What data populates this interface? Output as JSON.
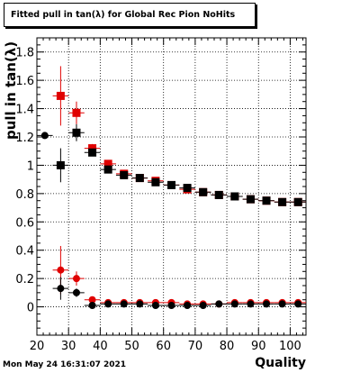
{
  "title": "Fitted pull in tan(λ) for Global Rec Pion NoHits",
  "datestamp": "Mon May 24 16:31:07 2021",
  "chart_data": {
    "type": "scatter",
    "xlabel": "Quality",
    "ylabel": "pull in tan(λ)",
    "xlim": [
      20,
      105
    ],
    "ylim": [
      -0.2,
      1.9
    ],
    "xticks": [
      20,
      30,
      40,
      50,
      60,
      70,
      80,
      90,
      100
    ],
    "yticks": [
      0,
      0.2,
      0.4,
      0.6,
      0.8,
      1,
      1.2,
      1.4,
      1.6,
      1.8
    ],
    "grid": true,
    "series": [
      {
        "marker": "square",
        "color": "#e00000",
        "points": [
          {
            "x": 27.5,
            "y": 1.49,
            "err": 0.21
          },
          {
            "x": 32.5,
            "y": 1.37,
            "err": 0.08
          },
          {
            "x": 37.5,
            "y": 1.12,
            "err": 0.03
          },
          {
            "x": 42.5,
            "y": 1.01,
            "err": 0.02
          },
          {
            "x": 47.5,
            "y": 0.94,
            "err": 0.01
          },
          {
            "x": 52.5,
            "y": 0.91,
            "err": 0.01
          },
          {
            "x": 57.5,
            "y": 0.89,
            "err": 0.01
          },
          {
            "x": 62.5,
            "y": 0.86,
            "err": 0.01
          },
          {
            "x": 67.5,
            "y": 0.83,
            "err": 0.01
          },
          {
            "x": 72.5,
            "y": 0.81,
            "err": 0.01
          },
          {
            "x": 77.5,
            "y": 0.79,
            "err": 0.01
          },
          {
            "x": 82.5,
            "y": 0.78,
            "err": 0.01
          },
          {
            "x": 87.5,
            "y": 0.76,
            "err": 0.01
          },
          {
            "x": 92.5,
            "y": 0.75,
            "err": 0.01
          },
          {
            "x": 97.5,
            "y": 0.74,
            "err": 0.01
          },
          {
            "x": 102.5,
            "y": 0.74,
            "err": 0.01
          }
        ]
      },
      {
        "marker": "square",
        "color": "#000000",
        "points": [
          {
            "x": 27.5,
            "y": 1.0,
            "err": 0.12
          },
          {
            "x": 32.5,
            "y": 1.23,
            "err": 0.06
          },
          {
            "x": 37.5,
            "y": 1.09,
            "err": 0.02
          },
          {
            "x": 42.5,
            "y": 0.97,
            "err": 0.01
          },
          {
            "x": 47.5,
            "y": 0.93,
            "err": 0.01
          },
          {
            "x": 52.5,
            "y": 0.91,
            "err": 0.01
          },
          {
            "x": 57.5,
            "y": 0.88,
            "err": 0.01
          },
          {
            "x": 62.5,
            "y": 0.86,
            "err": 0.01
          },
          {
            "x": 67.5,
            "y": 0.84,
            "err": 0.01
          },
          {
            "x": 72.5,
            "y": 0.81,
            "err": 0.01
          },
          {
            "x": 77.5,
            "y": 0.79,
            "err": 0.01
          },
          {
            "x": 82.5,
            "y": 0.78,
            "err": 0.01
          },
          {
            "x": 87.5,
            "y": 0.76,
            "err": 0.01
          },
          {
            "x": 92.5,
            "y": 0.75,
            "err": 0.01
          },
          {
            "x": 97.5,
            "y": 0.74,
            "err": 0.01
          },
          {
            "x": 102.5,
            "y": 0.74,
            "err": 0.01
          }
        ]
      },
      {
        "marker": "circle",
        "color": "#e00000",
        "points": [
          {
            "x": 27.5,
            "y": 0.26,
            "err": 0.17
          },
          {
            "x": 32.5,
            "y": 0.2,
            "err": 0.05
          },
          {
            "x": 37.5,
            "y": 0.05,
            "err": 0.02
          },
          {
            "x": 42.5,
            "y": 0.03,
            "err": 0.01
          },
          {
            "x": 47.5,
            "y": 0.03,
            "err": 0.01
          },
          {
            "x": 52.5,
            "y": 0.03,
            "err": 0.01
          },
          {
            "x": 57.5,
            "y": 0.03,
            "err": 0.01
          },
          {
            "x": 62.5,
            "y": 0.03,
            "err": 0.01
          },
          {
            "x": 67.5,
            "y": 0.02,
            "err": 0.01
          },
          {
            "x": 72.5,
            "y": 0.02,
            "err": 0.01
          },
          {
            "x": 77.5,
            "y": 0.02,
            "err": 0.01
          },
          {
            "x": 82.5,
            "y": 0.03,
            "err": 0.01
          },
          {
            "x": 87.5,
            "y": 0.03,
            "err": 0.01
          },
          {
            "x": 92.5,
            "y": 0.03,
            "err": 0.01
          },
          {
            "x": 97.5,
            "y": 0.03,
            "err": 0.01
          },
          {
            "x": 102.5,
            "y": 0.03,
            "err": 0.01
          }
        ]
      },
      {
        "marker": "circle",
        "color": "#000000",
        "points": [
          {
            "x": 22.5,
            "y": 1.21,
            "err": 0.02
          },
          {
            "x": 27.5,
            "y": 0.13,
            "err": 0.08
          },
          {
            "x": 32.5,
            "y": 0.1,
            "err": 0.03
          },
          {
            "x": 37.5,
            "y": 0.01,
            "err": 0.01
          },
          {
            "x": 42.5,
            "y": 0.02,
            "err": 0.01
          },
          {
            "x": 47.5,
            "y": 0.02,
            "err": 0.01
          },
          {
            "x": 52.5,
            "y": 0.02,
            "err": 0.01
          },
          {
            "x": 57.5,
            "y": 0.01,
            "err": 0.01
          },
          {
            "x": 62.5,
            "y": 0.01,
            "err": 0.01
          },
          {
            "x": 67.5,
            "y": 0.01,
            "err": 0.01
          },
          {
            "x": 72.5,
            "y": 0.01,
            "err": 0.01
          },
          {
            "x": 77.5,
            "y": 0.02,
            "err": 0.01
          },
          {
            "x": 82.5,
            "y": 0.02,
            "err": 0.01
          },
          {
            "x": 87.5,
            "y": 0.02,
            "err": 0.01
          },
          {
            "x": 92.5,
            "y": 0.02,
            "err": 0.01
          },
          {
            "x": 97.5,
            "y": 0.02,
            "err": 0.01
          },
          {
            "x": 102.5,
            "y": 0.02,
            "err": 0.01
          }
        ]
      }
    ]
  }
}
